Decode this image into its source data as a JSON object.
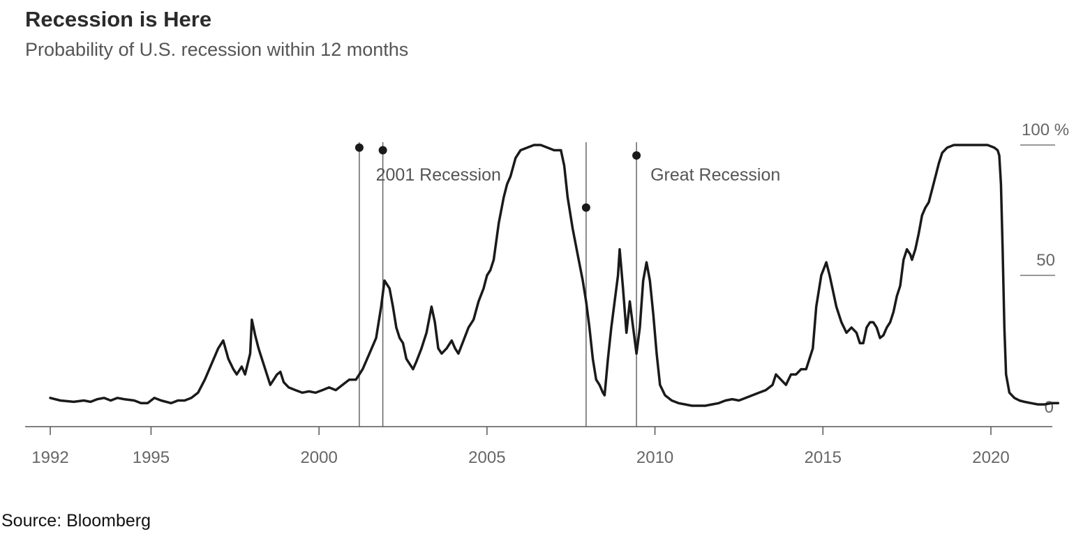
{
  "chart_data": {
    "type": "line",
    "title": "Recession is Here",
    "subtitle": "Probability of U.S. recession within 12 months",
    "source": "Source: Bloomberg",
    "xlim": [
      1992,
      2022
    ],
    "ylim": [
      0,
      100
    ],
    "x_ticks": [
      {
        "value": 1992,
        "label": "1992"
      },
      {
        "value": 1995,
        "label": "1995"
      },
      {
        "value": 2000,
        "label": "2000"
      },
      {
        "value": 2005,
        "label": "2005"
      },
      {
        "value": 2010,
        "label": "2010"
      },
      {
        "value": 2015,
        "label": "2015"
      },
      {
        "value": 2020,
        "label": "2020"
      }
    ],
    "y_ticks": [
      {
        "value": 0,
        "label": "0"
      },
      {
        "value": 50,
        "label": "50"
      },
      {
        "value": 100,
        "label": "100 %"
      }
    ],
    "grid": false,
    "annotations": [
      {
        "label": "2001 Recession",
        "start": 2001.2,
        "end": 2001.9,
        "label_y": 89
      },
      {
        "label": "Great Recession",
        "start": 2007.95,
        "end": 2009.45,
        "label_y": 89
      }
    ],
    "markers": [
      {
        "x": 2001.2,
        "y": 99
      },
      {
        "x": 2001.9,
        "y": 98
      },
      {
        "x": 2007.95,
        "y": 76
      },
      {
        "x": 2009.45,
        "y": 96
      }
    ],
    "series": [
      {
        "points": [
          [
            1992.0,
            3
          ],
          [
            1992.3,
            2
          ],
          [
            1992.7,
            1.5
          ],
          [
            1993.0,
            2
          ],
          [
            1993.2,
            1.5
          ],
          [
            1993.4,
            2.5
          ],
          [
            1993.6,
            3
          ],
          [
            1993.8,
            2
          ],
          [
            1994.0,
            3
          ],
          [
            1994.2,
            2.5
          ],
          [
            1994.5,
            2
          ],
          [
            1994.7,
            1
          ],
          [
            1994.9,
            1
          ],
          [
            1995.1,
            3
          ],
          [
            1995.3,
            2
          ],
          [
            1995.6,
            1
          ],
          [
            1995.8,
            2
          ],
          [
            1996.0,
            2
          ],
          [
            1996.2,
            3
          ],
          [
            1996.4,
            5
          ],
          [
            1996.6,
            10
          ],
          [
            1996.8,
            16
          ],
          [
            1997.0,
            22
          ],
          [
            1997.15,
            25
          ],
          [
            1997.3,
            18
          ],
          [
            1997.45,
            14
          ],
          [
            1997.55,
            12
          ],
          [
            1997.7,
            15
          ],
          [
            1997.8,
            12
          ],
          [
            1997.95,
            20
          ],
          [
            1998.0,
            33
          ],
          [
            1998.1,
            27
          ],
          [
            1998.2,
            22
          ],
          [
            1998.3,
            18
          ],
          [
            1998.45,
            12
          ],
          [
            1998.55,
            8
          ],
          [
            1998.65,
            10
          ],
          [
            1998.75,
            12
          ],
          [
            1998.85,
            13
          ],
          [
            1998.95,
            9
          ],
          [
            1999.1,
            7
          ],
          [
            1999.3,
            6
          ],
          [
            1999.5,
            5
          ],
          [
            1999.7,
            5.5
          ],
          [
            1999.9,
            5
          ],
          [
            2000.1,
            6
          ],
          [
            2000.3,
            7
          ],
          [
            2000.5,
            6
          ],
          [
            2000.7,
            8
          ],
          [
            2000.9,
            10
          ],
          [
            2001.1,
            10
          ],
          [
            2001.3,
            14
          ],
          [
            2001.5,
            20
          ],
          [
            2001.7,
            26
          ],
          [
            2001.85,
            38
          ],
          [
            2001.95,
            48
          ],
          [
            2002.1,
            45
          ],
          [
            2002.2,
            38
          ],
          [
            2002.3,
            30
          ],
          [
            2002.4,
            26
          ],
          [
            2002.5,
            24
          ],
          [
            2002.6,
            18
          ],
          [
            2002.7,
            16
          ],
          [
            2002.8,
            14
          ],
          [
            2002.9,
            17
          ],
          [
            2003.05,
            22
          ],
          [
            2003.2,
            28
          ],
          [
            2003.35,
            38
          ],
          [
            2003.45,
            32
          ],
          [
            2003.55,
            22
          ],
          [
            2003.65,
            20
          ],
          [
            2003.8,
            22
          ],
          [
            2003.95,
            25
          ],
          [
            2004.05,
            22
          ],
          [
            2004.15,
            20
          ],
          [
            2004.3,
            25
          ],
          [
            2004.45,
            30
          ],
          [
            2004.6,
            33
          ],
          [
            2004.75,
            40
          ],
          [
            2004.9,
            45
          ],
          [
            2005.0,
            50
          ],
          [
            2005.1,
            52
          ],
          [
            2005.2,
            56
          ],
          [
            2005.35,
            70
          ],
          [
            2005.5,
            80
          ],
          [
            2005.6,
            85
          ],
          [
            2005.7,
            88
          ],
          [
            2005.85,
            95
          ],
          [
            2006.0,
            98
          ],
          [
            2006.2,
            99
          ],
          [
            2006.4,
            100
          ],
          [
            2006.6,
            100
          ],
          [
            2006.8,
            99
          ],
          [
            2007.0,
            98
          ],
          [
            2007.2,
            98
          ],
          [
            2007.3,
            92
          ],
          [
            2007.4,
            80
          ],
          [
            2007.55,
            68
          ],
          [
            2007.7,
            58
          ],
          [
            2007.85,
            48
          ],
          [
            2007.95,
            40
          ],
          [
            2008.05,
            30
          ],
          [
            2008.15,
            18
          ],
          [
            2008.25,
            10
          ],
          [
            2008.35,
            8
          ],
          [
            2008.45,
            5
          ],
          [
            2008.5,
            4
          ],
          [
            2008.6,
            18
          ],
          [
            2008.7,
            30
          ],
          [
            2008.8,
            40
          ],
          [
            2008.9,
            50
          ],
          [
            2008.95,
            60
          ],
          [
            2009.05,
            45
          ],
          [
            2009.15,
            28
          ],
          [
            2009.25,
            40
          ],
          [
            2009.35,
            30
          ],
          [
            2009.45,
            20
          ],
          [
            2009.55,
            30
          ],
          [
            2009.65,
            48
          ],
          [
            2009.75,
            55
          ],
          [
            2009.85,
            48
          ],
          [
            2009.95,
            35
          ],
          [
            2010.05,
            20
          ],
          [
            2010.15,
            8
          ],
          [
            2010.3,
            4
          ],
          [
            2010.5,
            2
          ],
          [
            2010.7,
            1
          ],
          [
            2010.9,
            0.5
          ],
          [
            2011.1,
            0
          ],
          [
            2011.3,
            0
          ],
          [
            2011.5,
            0
          ],
          [
            2011.7,
            0.5
          ],
          [
            2011.9,
            1
          ],
          [
            2012.1,
            2
          ],
          [
            2012.3,
            2.5
          ],
          [
            2012.5,
            2
          ],
          [
            2012.7,
            3
          ],
          [
            2012.9,
            4
          ],
          [
            2013.1,
            5
          ],
          [
            2013.3,
            6
          ],
          [
            2013.5,
            8
          ],
          [
            2013.6,
            12
          ],
          [
            2013.75,
            10
          ],
          [
            2013.9,
            8
          ],
          [
            2014.05,
            12
          ],
          [
            2014.2,
            12
          ],
          [
            2014.35,
            14
          ],
          [
            2014.5,
            14
          ],
          [
            2014.6,
            18
          ],
          [
            2014.7,
            22
          ],
          [
            2014.8,
            38
          ],
          [
            2014.95,
            50
          ],
          [
            2015.1,
            55
          ],
          [
            2015.2,
            50
          ],
          [
            2015.3,
            44
          ],
          [
            2015.4,
            38
          ],
          [
            2015.55,
            32
          ],
          [
            2015.7,
            28
          ],
          [
            2015.85,
            30
          ],
          [
            2016.0,
            28
          ],
          [
            2016.1,
            24
          ],
          [
            2016.2,
            24
          ],
          [
            2016.3,
            30
          ],
          [
            2016.4,
            32
          ],
          [
            2016.5,
            32
          ],
          [
            2016.6,
            30
          ],
          [
            2016.7,
            26
          ],
          [
            2016.8,
            27
          ],
          [
            2016.9,
            30
          ],
          [
            2017.0,
            32
          ],
          [
            2017.1,
            36
          ],
          [
            2017.2,
            42
          ],
          [
            2017.3,
            46
          ],
          [
            2017.4,
            56
          ],
          [
            2017.5,
            60
          ],
          [
            2017.6,
            58
          ],
          [
            2017.65,
            56
          ],
          [
            2017.75,
            60
          ],
          [
            2017.85,
            66
          ],
          [
            2017.95,
            73
          ],
          [
            2018.05,
            76
          ],
          [
            2018.15,
            78
          ],
          [
            2018.25,
            83
          ],
          [
            2018.35,
            88
          ],
          [
            2018.45,
            93
          ],
          [
            2018.55,
            97
          ],
          [
            2018.7,
            99
          ],
          [
            2018.9,
            100
          ],
          [
            2019.2,
            100
          ],
          [
            2019.6,
            100
          ],
          [
            2019.9,
            100
          ],
          [
            2020.1,
            99
          ],
          [
            2020.2,
            98
          ],
          [
            2020.25,
            96
          ],
          [
            2020.3,
            85
          ],
          [
            2020.35,
            60
          ],
          [
            2020.4,
            30
          ],
          [
            2020.45,
            12
          ],
          [
            2020.55,
            5
          ],
          [
            2020.7,
            3
          ],
          [
            2020.85,
            2
          ],
          [
            2021.0,
            1.5
          ],
          [
            2021.2,
            1
          ],
          [
            2021.4,
            0.5
          ],
          [
            2021.6,
            0.5
          ],
          [
            2021.8,
            1
          ],
          [
            2022.0,
            1
          ]
        ]
      }
    ]
  }
}
